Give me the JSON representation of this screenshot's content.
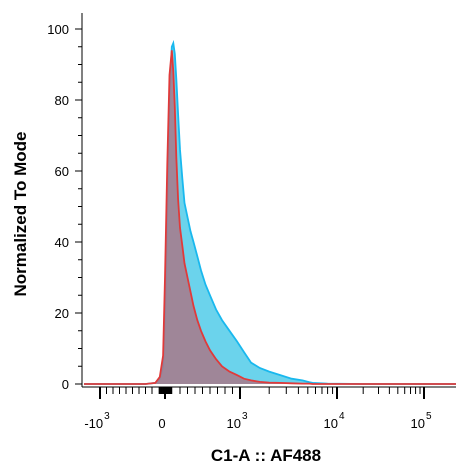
{
  "chart_data": {
    "type": "area",
    "title": "",
    "xlabel": "C1-A :: AF488",
    "ylabel": "Normalized To Mode",
    "x_scale": "biexponential",
    "ylim": [
      0,
      100
    ],
    "y_ticks": [
      0,
      20,
      40,
      60,
      80,
      100
    ],
    "x_ticks": [
      {
        "base": "-10",
        "exp": "3",
        "value": -1000
      },
      {
        "base": "0",
        "exp": "",
        "value": 0
      },
      {
        "base": "10",
        "exp": "3",
        "value": 1000
      },
      {
        "base": "10",
        "exp": "4",
        "value": 10000
      },
      {
        "base": "10",
        "exp": "5",
        "value": 100000
      }
    ],
    "grid": false,
    "series": [
      {
        "color_fill": "#3ac4e6",
        "color_line": "#19b8ee",
        "x": [
          -2000,
          -300,
          -150,
          -80,
          -30,
          0,
          30,
          60,
          90,
          110,
          130,
          150,
          175,
          200,
          230,
          260,
          300,
          340,
          380,
          430,
          480,
          540,
          600,
          680,
          760,
          860,
          960,
          1100,
          1300,
          1600,
          2000,
          2600,
          3400,
          4400,
          5200,
          5600,
          8000,
          20000,
          100000,
          200000
        ],
        "y": [
          0,
          0,
          0.3,
          1.5,
          5,
          20,
          50,
          80,
          95,
          96,
          93,
          86,
          76,
          66,
          58,
          51,
          47,
          43,
          40,
          36,
          32,
          28,
          25,
          21,
          18,
          15,
          12,
          9,
          6,
          4.5,
          3.5,
          2.5,
          1.5,
          1,
          0.5,
          0.3,
          0.1,
          0,
          0,
          0
        ]
      },
      {
        "color_fill": "#a8788a",
        "color_line": "#e03a3a",
        "x": [
          -2000,
          -300,
          -150,
          -80,
          -30,
          0,
          30,
          60,
          90,
          110,
          130,
          150,
          175,
          200,
          230,
          260,
          300,
          340,
          380,
          430,
          480,
          540,
          600,
          680,
          760,
          860,
          960,
          1100,
          1300,
          1600,
          2000,
          2600,
          3400,
          4400,
          5200,
          5600,
          8000,
          20000,
          100000,
          200000
        ],
        "y": [
          0,
          0,
          0.3,
          2,
          8,
          30,
          62,
          87,
          94,
          88,
          78,
          64,
          52,
          44,
          39,
          34,
          30,
          26,
          22,
          18,
          15,
          12,
          9.5,
          7,
          5,
          3.5,
          2.5,
          1.5,
          1,
          0.6,
          0.4,
          0.3,
          0.2,
          0.1,
          0.1,
          0,
          0,
          0,
          0,
          0
        ]
      }
    ]
  }
}
